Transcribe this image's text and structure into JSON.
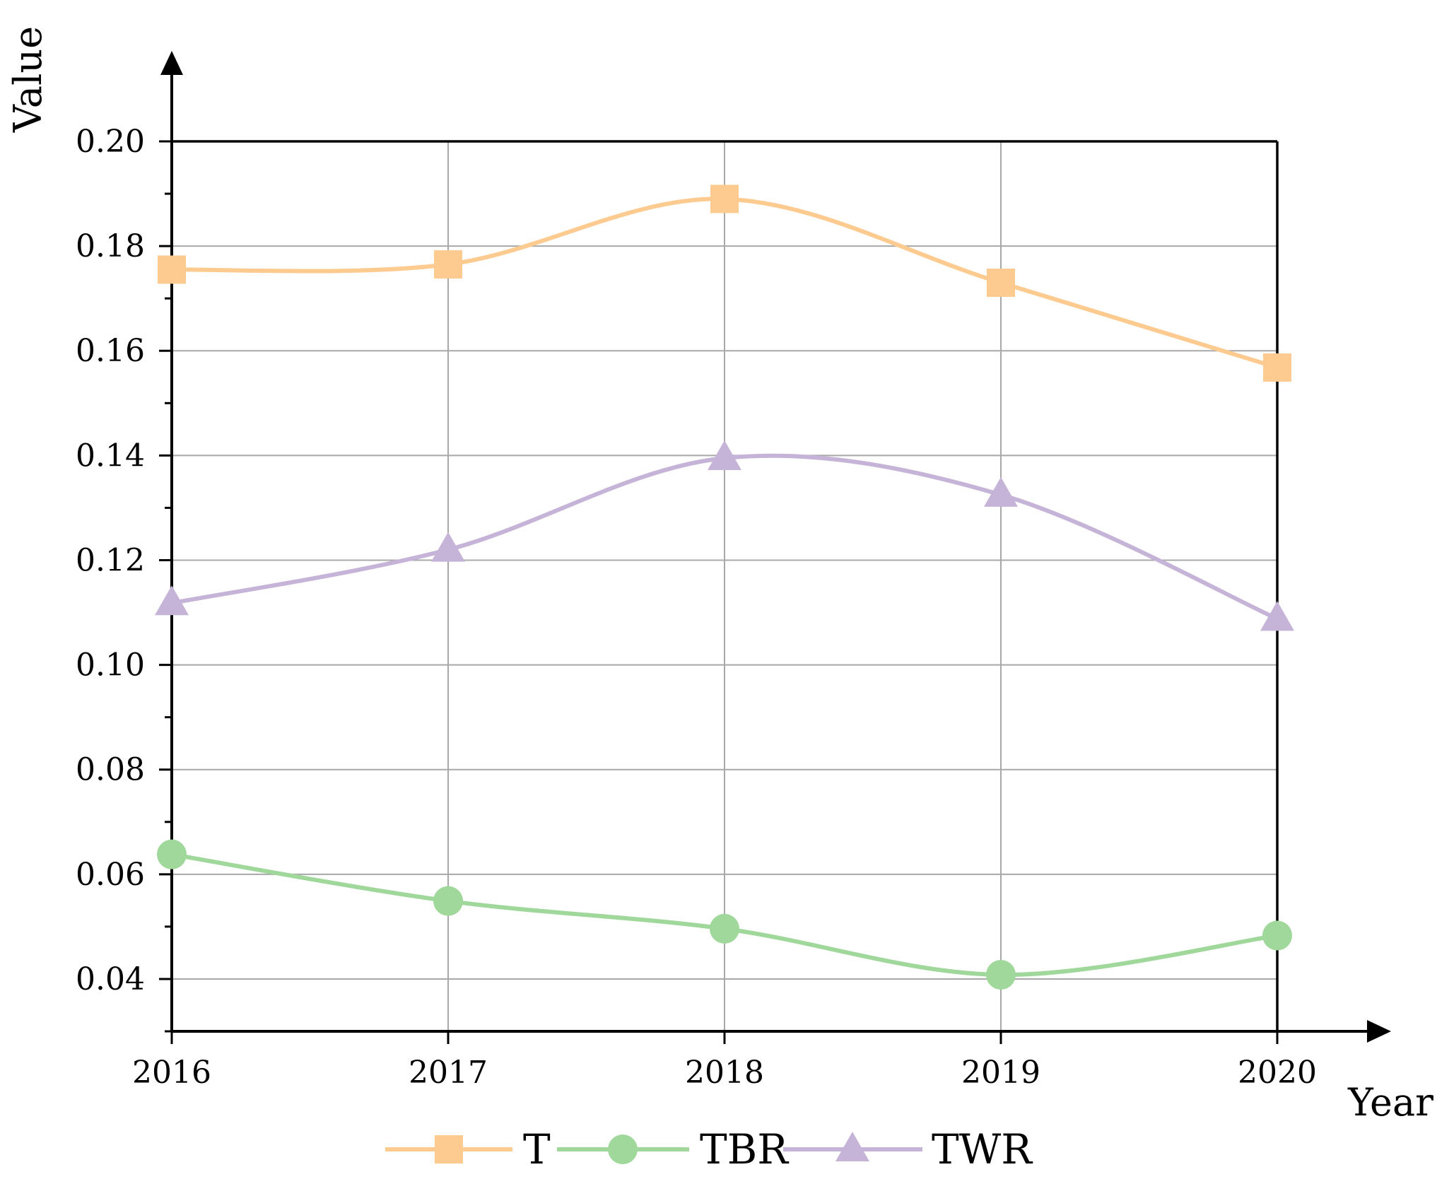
{
  "chart_data": {
    "type": "line",
    "title": "",
    "xlabel": "Year",
    "ylabel": "Value",
    "categories": [
      "2016",
      "2017",
      "2018",
      "2019",
      "2020"
    ],
    "ylim": [
      0.03,
      0.2
    ],
    "yticks": [
      "0.04",
      "0.06",
      "0.08",
      "0.10",
      "0.12",
      "0.14",
      "0.16",
      "0.18",
      "0.20"
    ],
    "grid": true,
    "smooth": true,
    "legend_position": "bottom",
    "series": [
      {
        "name": "T",
        "color": "#fdcb90",
        "marker": "square",
        "values": [
          0.1755,
          0.1765,
          0.189,
          0.173,
          0.1568
        ]
      },
      {
        "name": "TBR",
        "color": "#9fd89a",
        "marker": "circle",
        "values": [
          0.0638,
          0.0549,
          0.0496,
          0.0408,
          0.0483
        ]
      },
      {
        "name": "TWR",
        "color": "#c6b3d8",
        "marker": "triangle",
        "values": [
          0.1118,
          0.122,
          0.1395,
          0.1325,
          0.1088
        ]
      }
    ]
  }
}
